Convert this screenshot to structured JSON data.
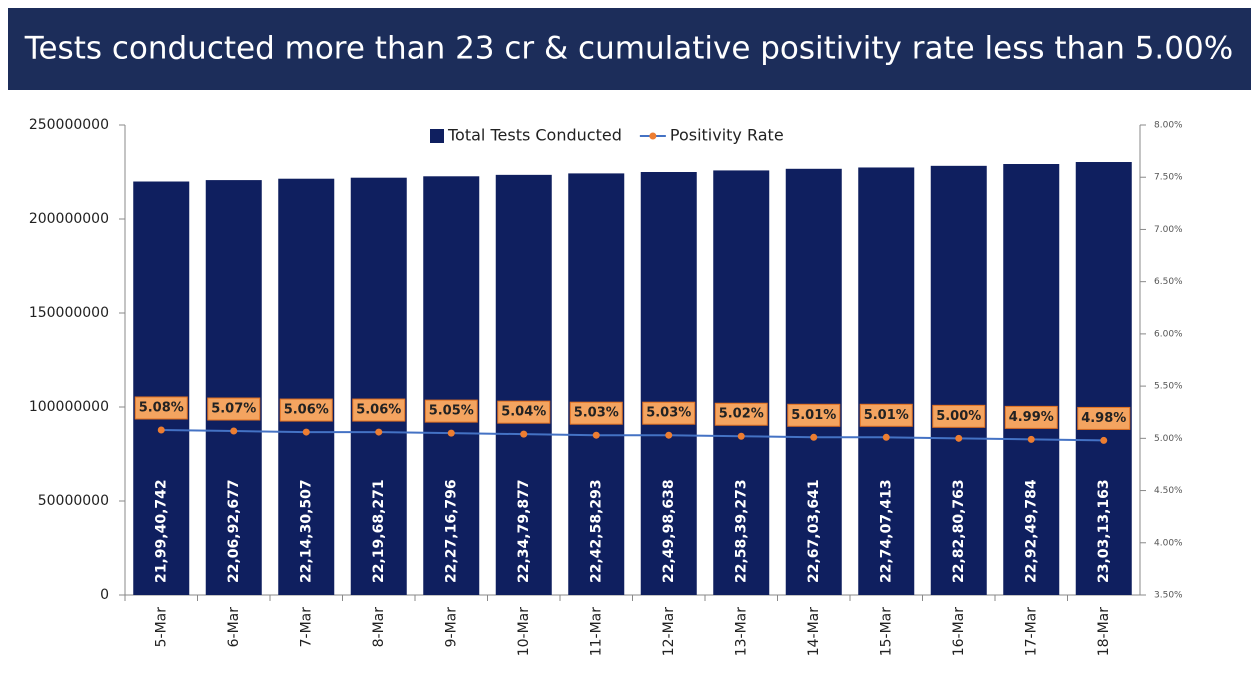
{
  "chart_data": {
    "type": "bar_line",
    "title": "Tests conducted more than 23 cr & cumulative positivity rate less than 5.00%",
    "categories": [
      "5-Mar",
      "6-Mar",
      "7-Mar",
      "8-Mar",
      "9-Mar",
      "10-Mar",
      "11-Mar",
      "12-Mar",
      "13-Mar",
      "14-Mar",
      "15-Mar",
      "16-Mar",
      "17-Mar",
      "18-Mar"
    ],
    "series": [
      {
        "name": "Total Tests Conducted",
        "type": "bar",
        "color": "#0f1f5f",
        "values": [
          219940742,
          220692677,
          221430507,
          221968271,
          222716796,
          223479877,
          224258293,
          224998638,
          225839273,
          226703641,
          227407413,
          228280763,
          229249784,
          230313163
        ],
        "value_labels": [
          "21,99,40,742",
          "22,06,92,677",
          "22,14,30,507",
          "22,19,68,271",
          "22,27,16,796",
          "22,34,79,877",
          "22,42,58,293",
          "22,49,98,638",
          "22,58,39,273",
          "22,67,03,641",
          "22,74,07,413",
          "22,82,80,763",
          "22,92,49,784",
          "23,03,13,163"
        ]
      },
      {
        "name": "Positivity Rate",
        "type": "line",
        "axis": "y2",
        "color": "#4472c4",
        "marker_color": "#ed7d31",
        "values": [
          5.08,
          5.07,
          5.06,
          5.06,
          5.05,
          5.04,
          5.03,
          5.03,
          5.02,
          5.01,
          5.01,
          5.0,
          4.99,
          4.98
        ],
        "value_labels": [
          "5.08%",
          "5.07%",
          "5.06%",
          "5.06%",
          "5.05%",
          "5.04%",
          "5.03%",
          "5.03%",
          "5.02%",
          "5.01%",
          "5.01%",
          "5.00%",
          "4.99%",
          "4.98%"
        ]
      }
    ],
    "ylim": [
      0,
      250000000
    ],
    "yticks": [
      0,
      50000000,
      100000000,
      150000000,
      200000000,
      250000000
    ],
    "y2lim": [
      3.5,
      8
    ],
    "y2ticks": [
      {
        "value": 3.5,
        "label": "3.50%"
      },
      {
        "value": 4,
        "label": "4.00%"
      },
      {
        "value": 4.5,
        "label": "4.50%"
      },
      {
        "value": 5,
        "label": "5.00%"
      },
      {
        "value": 5.5,
        "label": "5.50%"
      },
      {
        "value": 6,
        "label": "6.00%"
      },
      {
        "value": 6.5,
        "label": "6.50%"
      },
      {
        "value": 7,
        "label": "7.00%"
      },
      {
        "value": 7.5,
        "label": "7.50%"
      },
      {
        "value": 8,
        "label": "8.00%"
      }
    ],
    "legend": "top"
  }
}
